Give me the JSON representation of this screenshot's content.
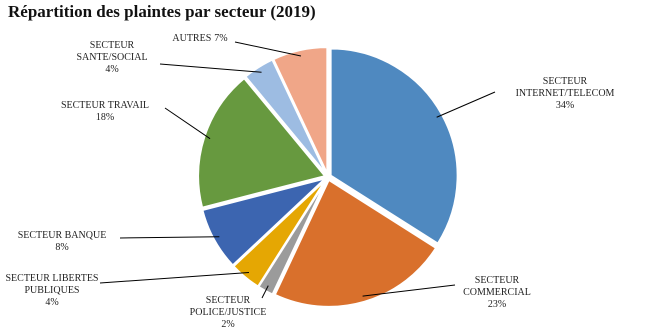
{
  "chart_data": {
    "type": "pie",
    "title": "Répartition des plaintes par secteur (2019)",
    "categories": [
      "SECTEUR INTERNET/TELECOM",
      "SECTEUR COMMERCIAL",
      "SECTEUR POLICE/JUSTICE",
      "SECTEUR LIBERTES PUBLIQUES",
      "SECTEUR BANQUE",
      "SECTEUR TRAVAIL",
      "SECTEUR SANTE/SOCIAL",
      "AUTRES"
    ],
    "values": [
      34,
      23,
      2,
      4,
      8,
      18,
      4,
      7
    ],
    "value_labels": [
      "34%",
      "23%",
      "2%",
      "4%",
      "8%",
      "18%",
      "4%",
      "7%"
    ],
    "colors": [
      "#4f89c0",
      "#d9702c",
      "#9b9b9b",
      "#e5a703",
      "#3c65b0",
      "#67993f",
      "#9dbce2",
      "#f0a688"
    ]
  }
}
